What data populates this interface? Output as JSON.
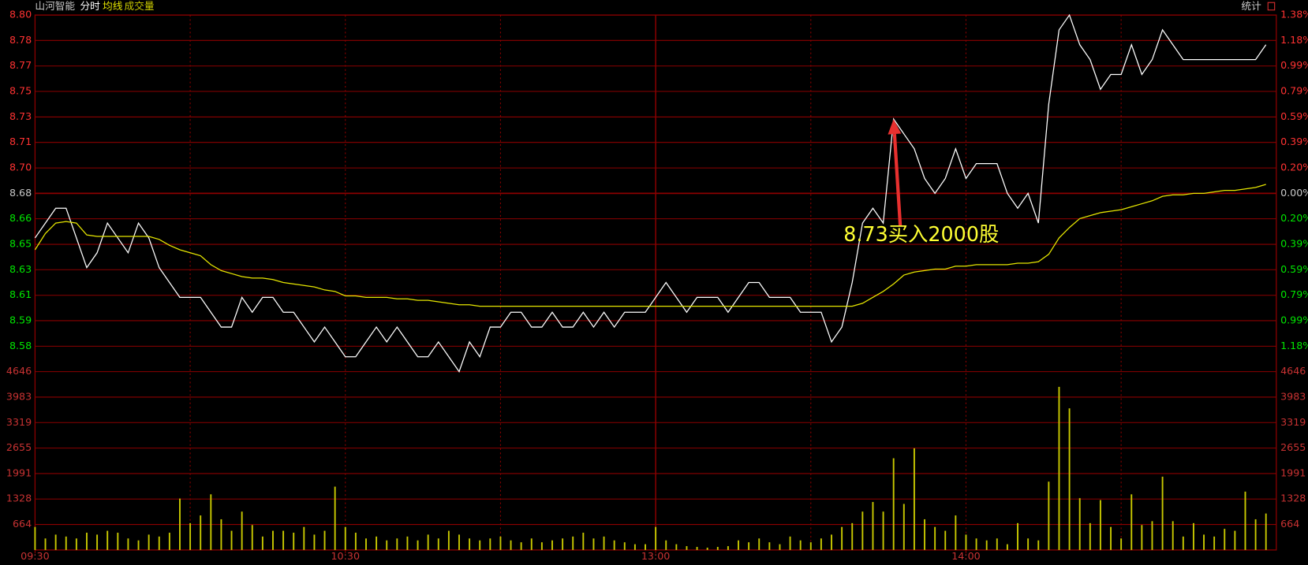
{
  "chart_data": {
    "type": "line",
    "title": "山河智能",
    "stats_button": "统计",
    "x": [
      0,
      2,
      4,
      6,
      8,
      10,
      12,
      14,
      16,
      18,
      20,
      22,
      24,
      26,
      28,
      30,
      32,
      34,
      36,
      38,
      40,
      42,
      44,
      46,
      48,
      50,
      52,
      54,
      56,
      58,
      60,
      62,
      64,
      66,
      68,
      70,
      72,
      74,
      76,
      78,
      80,
      82,
      84,
      86,
      88,
      90,
      92,
      94,
      96,
      98,
      100,
      102,
      104,
      106,
      108,
      110,
      112,
      114,
      116,
      118,
      120,
      122,
      124,
      126,
      128,
      130,
      132,
      134,
      136,
      138,
      140,
      142,
      144,
      146,
      148,
      150,
      152,
      154,
      156,
      158,
      160,
      162,
      164,
      166,
      168,
      170,
      172,
      174,
      176,
      178,
      180,
      182,
      184,
      186,
      188,
      190,
      192,
      194,
      196,
      198,
      200,
      202,
      204,
      206,
      208,
      210,
      212,
      214,
      216,
      218,
      220,
      222,
      224,
      226,
      228,
      230,
      232,
      234,
      236,
      238
    ],
    "xlim": [
      0,
      240
    ],
    "xticks": [
      {
        "value": 0,
        "label": "09:30"
      },
      {
        "value": 60,
        "label": "10:30"
      },
      {
        "value": 120,
        "label": "13:00"
      },
      {
        "value": 180,
        "label": "14:00"
      }
    ],
    "xgrid": [
      30,
      60,
      90,
      120,
      150,
      180,
      210
    ],
    "ylim": [
      8.56,
      8.8
    ],
    "yticks": [
      {
        "value": 8.8,
        "label": "8.80"
      },
      {
        "value": 8.7829,
        "label": "8.78"
      },
      {
        "value": 8.7657,
        "label": "8.77"
      },
      {
        "value": 8.7486,
        "label": "8.75"
      },
      {
        "value": 8.7314,
        "label": "8.73"
      },
      {
        "value": 8.7143,
        "label": "8.71"
      },
      {
        "value": 8.6971,
        "label": "8.70"
      },
      {
        "value": 8.68,
        "label": "8.68"
      },
      {
        "value": 8.6629,
        "label": "8.66"
      },
      {
        "value": 8.6457,
        "label": "8.65"
      },
      {
        "value": 8.6286,
        "label": "8.63"
      },
      {
        "value": 8.6114,
        "label": "8.61"
      },
      {
        "value": 8.5943,
        "label": "8.59"
      },
      {
        "value": 8.5771,
        "label": "8.58"
      }
    ],
    "y2lim": [
      -1.38,
      1.38
    ],
    "y2ticks": [
      {
        "value": 1.38,
        "label": "1.38%"
      },
      {
        "value": 1.18,
        "label": "1.18%"
      },
      {
        "value": 0.99,
        "label": "0.99%"
      },
      {
        "value": 0.79,
        "label": "0.79%"
      },
      {
        "value": 0.59,
        "label": "0.59%"
      },
      {
        "value": 0.39,
        "label": "0.39%"
      },
      {
        "value": 0.2,
        "label": "0.20%"
      },
      {
        "value": 0,
        "label": "0.00%"
      },
      {
        "value": -0.2,
        "label": "0.20%"
      },
      {
        "value": -0.39,
        "label": "0.39%"
      },
      {
        "value": -0.59,
        "label": "0.59%"
      },
      {
        "value": -0.79,
        "label": "0.79%"
      },
      {
        "value": -0.99,
        "label": "0.99%"
      },
      {
        "value": -1.18,
        "label": "1.18%"
      }
    ],
    "volume_ylim": [
      0,
      4646
    ],
    "volume_yticks": [
      4646,
      3983,
      3319,
      2655,
      1991,
      1328,
      664
    ],
    "series": [
      {
        "name": "分时",
        "color": "#ffffff",
        "values": [
          8.65,
          8.66,
          8.67,
          8.67,
          8.65,
          8.63,
          8.64,
          8.66,
          8.65,
          8.64,
          8.66,
          8.65,
          8.63,
          8.62,
          8.61,
          8.61,
          8.61,
          8.6,
          8.59,
          8.59,
          8.61,
          8.6,
          8.61,
          8.61,
          8.6,
          8.6,
          8.59,
          8.58,
          8.59,
          8.58,
          8.57,
          8.57,
          8.58,
          8.59,
          8.58,
          8.59,
          8.58,
          8.57,
          8.57,
          8.58,
          8.57,
          8.56,
          8.58,
          8.57,
          8.59,
          8.59,
          8.6,
          8.6,
          8.59,
          8.59,
          8.6,
          8.59,
          8.59,
          8.6,
          8.59,
          8.6,
          8.59,
          8.6,
          8.6,
          8.6,
          8.61,
          8.62,
          8.61,
          8.6,
          8.61,
          8.61,
          8.61,
          8.6,
          8.61,
          8.62,
          8.62,
          8.61,
          8.61,
          8.61,
          8.6,
          8.6,
          8.6,
          8.58,
          8.59,
          8.62,
          8.66,
          8.67,
          8.66,
          8.73,
          8.72,
          8.71,
          8.69,
          8.68,
          8.69,
          8.71,
          8.69,
          8.7,
          8.7,
          8.7,
          8.68,
          8.67,
          8.68,
          8.66,
          8.74,
          8.79,
          8.8,
          8.78,
          8.77,
          8.75,
          8.76,
          8.76,
          8.78,
          8.76,
          8.77,
          8.79,
          8.78,
          8.77,
          8.77,
          8.77,
          8.77,
          8.77,
          8.77,
          8.77,
          8.77,
          8.78
        ]
      },
      {
        "name": "均线",
        "color": "#e6e600",
        "values": [
          8.642,
          8.653,
          8.66,
          8.661,
          8.66,
          8.652,
          8.651,
          8.651,
          8.651,
          8.651,
          8.651,
          8.651,
          8.649,
          8.645,
          8.642,
          8.64,
          8.638,
          8.632,
          8.628,
          8.626,
          8.624,
          8.623,
          8.623,
          8.622,
          8.62,
          8.619,
          8.618,
          8.617,
          8.615,
          8.614,
          8.611,
          8.611,
          8.61,
          8.61,
          8.61,
          8.609,
          8.609,
          8.608,
          8.608,
          8.607,
          8.606,
          8.605,
          8.605,
          8.604,
          8.604,
          8.604,
          8.604,
          8.604,
          8.604,
          8.604,
          8.604,
          8.604,
          8.604,
          8.604,
          8.604,
          8.604,
          8.604,
          8.604,
          8.604,
          8.604,
          8.604,
          8.604,
          8.604,
          8.604,
          8.604,
          8.604,
          8.604,
          8.604,
          8.604,
          8.604,
          8.604,
          8.604,
          8.604,
          8.604,
          8.604,
          8.604,
          8.604,
          8.604,
          8.604,
          8.604,
          8.606,
          8.61,
          8.614,
          8.619,
          8.625,
          8.627,
          8.628,
          8.629,
          8.629,
          8.631,
          8.631,
          8.632,
          8.632,
          8.632,
          8.632,
          8.633,
          8.633,
          8.634,
          8.639,
          8.65,
          8.657,
          8.663,
          8.665,
          8.667,
          8.668,
          8.669,
          8.671,
          8.673,
          8.675,
          8.678,
          8.679,
          8.679,
          8.68,
          8.68,
          8.681,
          8.682,
          8.682,
          8.683,
          8.684,
          8.686
        ]
      },
      {
        "name": "成交量",
        "color": "#c8c800",
        "axis": "volume",
        "values": [
          600,
          300,
          400,
          350,
          300,
          450,
          400,
          500,
          450,
          300,
          250,
          400,
          350,
          450,
          1340,
          700,
          900,
          1450,
          800,
          500,
          1000,
          650,
          350,
          500,
          500,
          450,
          600,
          400,
          500,
          1650,
          600,
          450,
          300,
          350,
          250,
          300,
          350,
          250,
          400,
          300,
          500,
          400,
          300,
          250,
          300,
          350,
          250,
          200,
          300,
          200,
          250,
          300,
          350,
          450,
          300,
          350,
          250,
          200,
          150,
          150,
          600,
          250,
          150,
          100,
          80,
          60,
          80,
          100,
          250,
          200,
          300,
          200,
          150,
          350,
          250,
          200,
          300,
          400,
          600,
          700,
          1000,
          1250,
          1000,
          2390,
          1200,
          2650,
          800,
          600,
          500,
          900,
          400,
          300,
          250,
          300,
          150,
          700,
          300,
          250,
          1780,
          4250,
          3690,
          1350,
          700,
          1300,
          600,
          300,
          1450,
          650,
          750,
          1910,
          750,
          350,
          700,
          400,
          350,
          550,
          500,
          1520,
          800,
          950
        ]
      }
    ],
    "annotation": {
      "text": "8.73买入2000股",
      "x": 166,
      "y": 8.73,
      "color": "#ffff33",
      "arrow_color": "#e8302f"
    },
    "grid": true,
    "colors": {
      "up": "#ff3232",
      "flat": "#c8c8c8",
      "down": "#00e600",
      "grid": "#8c0000",
      "axis": "#c83232"
    }
  }
}
